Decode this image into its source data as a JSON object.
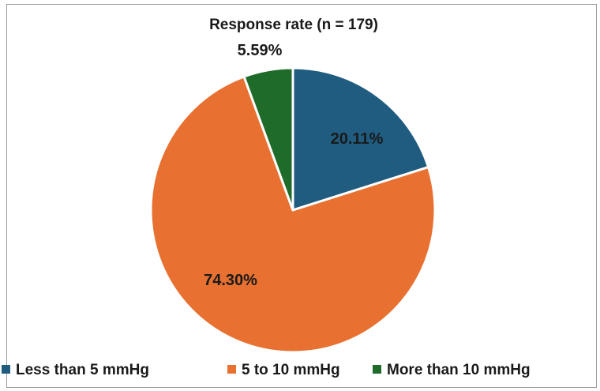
{
  "chart_data": {
    "type": "pie",
    "title": "Response rate (n = 179)",
    "categories": [
      "Less than 5 mmHg",
      "5 to 10 mmHg",
      "More than 10 mmHg"
    ],
    "values": [
      20.11,
      74.3,
      5.59
    ],
    "labels": [
      "20.11%",
      "74.30%",
      "5.59%"
    ],
    "colors": [
      "#1f5c80",
      "#e87131",
      "#1e6b2a"
    ],
    "legend_position": "bottom"
  }
}
